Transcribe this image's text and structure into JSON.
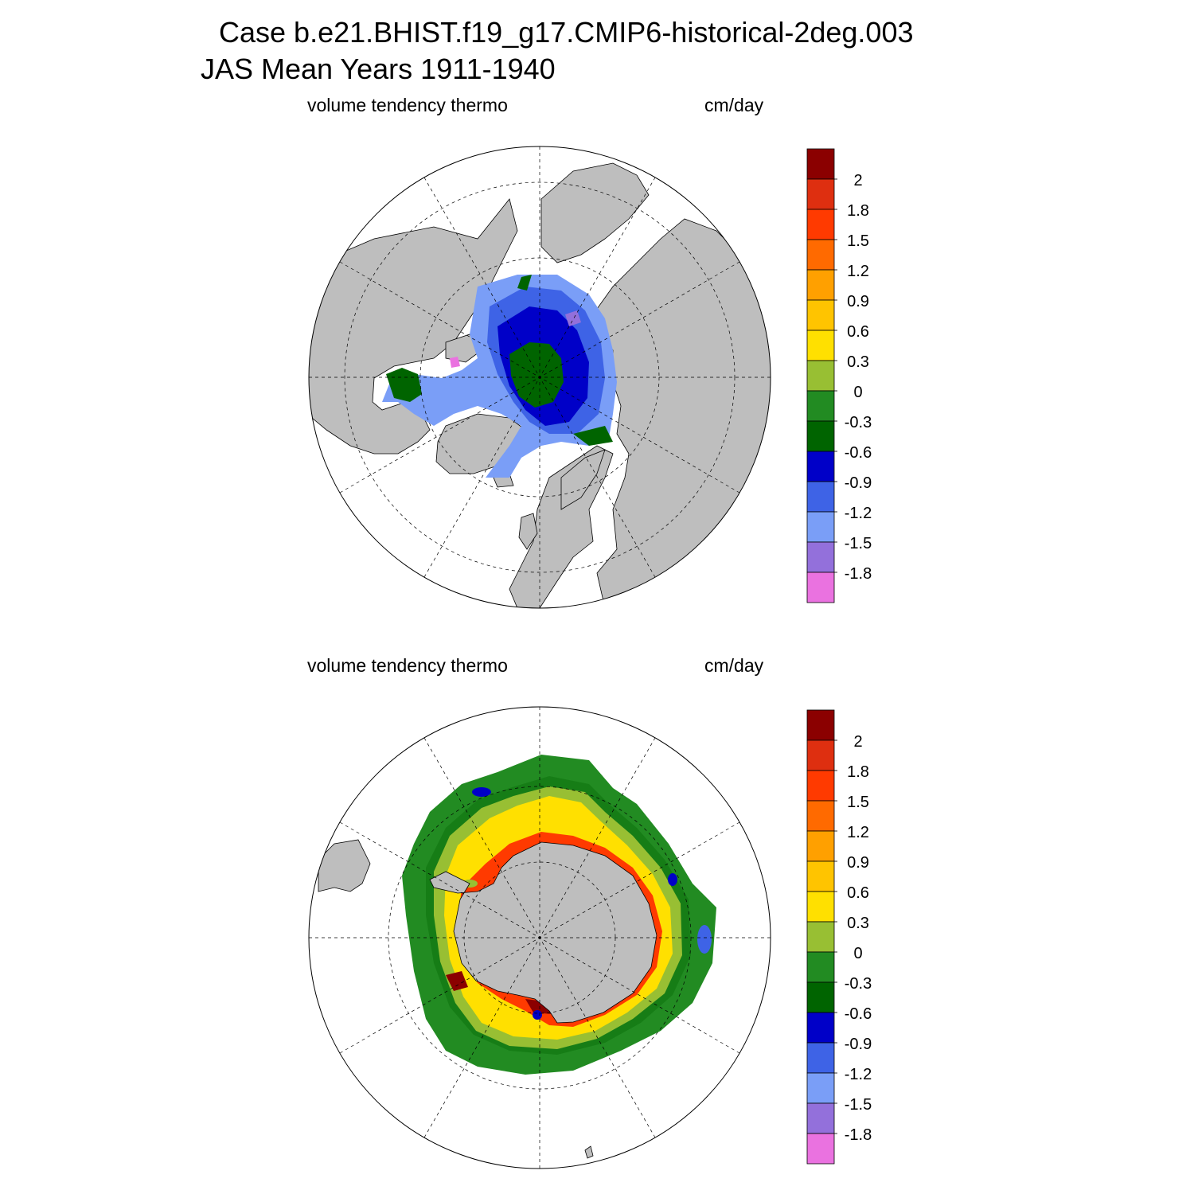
{
  "title": {
    "line1": "Case b.e21.BHIST.f19_g17.CMIP6-historical-2deg.003",
    "line2": "JAS Mean   Years 1911-1940"
  },
  "colors": {
    "land": "#bebebe",
    "levels": [
      "#ea72e0",
      "#9370db",
      "#7a9ef7",
      "#3e63e6",
      "#0000c8",
      "#006400",
      "#228b22",
      "#98bf33",
      "#ffe000",
      "#ffc400",
      "#ffa000",
      "#ff6a00",
      "#ff3a00",
      "#de2f10",
      "#8b0000"
    ]
  },
  "panels": [
    {
      "id": "arctic",
      "variable_label": "volume tendency thermo",
      "units_label": "cm/day",
      "colorbar_ticks": [
        "-1.8",
        "-1.5",
        "-1.2",
        "-0.9",
        "-0.6",
        "-0.3",
        "0",
        "0.3",
        "0.6",
        "0.9",
        "1.2",
        "1.5",
        "1.8",
        "2"
      ]
    },
    {
      "id": "antarctic",
      "variable_label": "volume tendency thermo",
      "units_label": "cm/day",
      "colorbar_ticks": [
        "-1.8",
        "-1.5",
        "-1.2",
        "-0.9",
        "-0.6",
        "-0.3",
        "0",
        "0.3",
        "0.6",
        "0.9",
        "1.2",
        "1.5",
        "1.8",
        "2"
      ]
    }
  ]
}
